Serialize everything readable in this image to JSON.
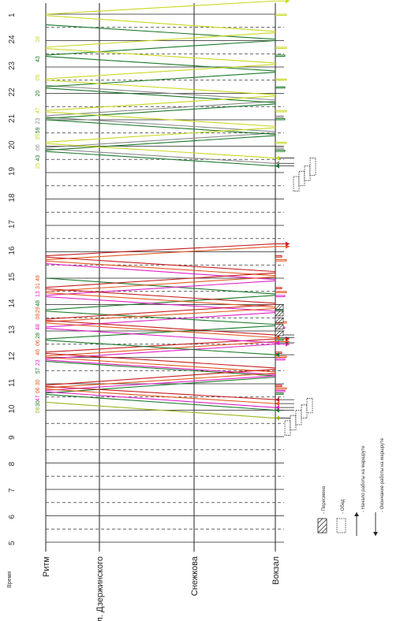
{
  "chart_data": {
    "type": "line",
    "title": "",
    "axis_title": "Время",
    "hours": [
      "5",
      "6",
      "7",
      "8",
      "9",
      "10",
      "11",
      "12",
      "13",
      "14",
      "15",
      "16",
      "17",
      "18",
      "19",
      "20",
      "21",
      "22",
      "23",
      "24",
      "1"
    ],
    "stops": [
      {
        "key": "ritm",
        "label": "Ритм"
      },
      {
        "key": "dzerzh",
        "label": "Ул. Дзержинского"
      },
      {
        "key": "snezh",
        "label": "Снежкова"
      },
      {
        "key": "vokzal",
        "label": "Вокзал"
      }
    ],
    "colors": {
      "green": "#1a7a2a",
      "olive": "#9ab81e",
      "pink": "#e020c8",
      "orange": "#e25820",
      "red": "#c81e1e",
      "gray": "#8a8a8a",
      "dgreen": "#2a6a36",
      "lgreen": "#c8d820"
    },
    "series": [
      {
        "color": "olive",
        "legs": [
          [
            9.7,
            10.3
          ]
        ],
        "end": "arrow"
      },
      {
        "color": "green",
        "legs": [
          [
            10.0,
            10.6
          ],
          [
            10.65,
            11.25
          ],
          [
            11.3,
            11.85
          ]
        ],
        "end": "arrow"
      },
      {
        "color": "pink",
        "legs": [
          [
            10.1,
            10.7
          ],
          [
            10.75,
            11.3
          ],
          [
            11.35,
            11.9
          ],
          [
            11.95,
            12.5
          ]
        ],
        "end": "arrow"
      },
      {
        "color": "orange",
        "legs": [
          [
            10.25,
            10.8
          ],
          [
            10.85,
            11.4
          ],
          [
            11.45,
            12.0
          ],
          [
            12.05,
            12.6
          ]
        ],
        "end": "arrow"
      },
      {
        "color": "red",
        "legs": [
          [
            10.4,
            10.9
          ],
          [
            10.95,
            11.55
          ],
          [
            11.6,
            12.15
          ],
          [
            12.2,
            12.7
          ]
        ],
        "end": "arrow"
      },
      {
        "color": "green",
        "legs": [
          [
            12.1,
            12.65
          ],
          [
            12.7,
            13.2
          ],
          [
            13.25,
            13.75
          ],
          [
            13.8,
            14.35
          ],
          [
            14.4,
            15.0
          ]
        ],
        "end": "arrow"
      },
      {
        "color": "pink",
        "legs": [
          [
            12.55,
            13.1
          ],
          [
            13.15,
            13.7
          ],
          [
            13.75,
            14.3
          ],
          [
            14.35,
            14.9
          ],
          [
            14.95,
            15.55
          ]
        ],
        "end": "arrow"
      },
      {
        "color": "orange",
        "legs": [
          [
            12.75,
            13.3
          ],
          [
            13.35,
            13.85
          ],
          [
            13.9,
            14.45
          ],
          [
            14.5,
            15.05
          ],
          [
            15.1,
            15.65
          ],
          [
            15.7,
            16.2
          ]
        ],
        "end": "arrow"
      },
      {
        "color": "red",
        "legs": [
          [
            12.85,
            13.4
          ],
          [
            13.45,
            14.0
          ],
          [
            14.05,
            14.6
          ],
          [
            14.65,
            15.2
          ],
          [
            15.25,
            15.8
          ],
          [
            15.85,
            16.3
          ]
        ],
        "end": "arrow"
      },
      {
        "color": "gray",
        "legs": [
          [
            19.35,
            19.9
          ],
          [
            19.95,
            20.5
          ],
          [
            20.55,
            21.1
          ],
          [
            21.15,
            21.7
          ],
          [
            21.75,
            22.3
          ]
        ],
        "end": "arrow"
      },
      {
        "color": "green",
        "legs": [
          [
            19.25,
            19.8
          ],
          [
            19.85,
            20.4
          ],
          [
            20.45,
            21.0
          ],
          [
            21.05,
            21.6
          ],
          [
            21.65,
            22.2
          ],
          [
            22.25,
            22.8
          ],
          [
            22.85,
            23.4
          ],
          [
            23.45,
            24.0
          ],
          [
            24.05,
            24.6
          ]
        ],
        "end": "arrow"
      },
      {
        "color": "lgreen",
        "legs": [
          [
            19.55,
            20.1
          ],
          [
            20.15,
            20.7
          ],
          [
            20.75,
            21.3
          ],
          [
            21.35,
            21.9
          ],
          [
            21.95,
            22.5
          ],
          [
            22.55,
            23.1
          ],
          [
            23.15,
            23.7
          ],
          [
            23.75,
            24.3
          ],
          [
            24.35,
            24.95
          ],
          [
            25.0,
            25.5
          ]
        ],
        "end": "arrow"
      }
    ],
    "minute_labels": [
      {
        "hour": 10.0,
        "text": "08",
        "color": "olive"
      },
      {
        "hour": 10.25,
        "text": "30",
        "color": "green"
      },
      {
        "hour": 10.45,
        "text": "47",
        "color": "pink"
      },
      {
        "hour": 10.75,
        "text": "06",
        "color": "orange"
      },
      {
        "hour": 11.05,
        "text": "30",
        "color": "orange"
      },
      {
        "hour": 11.5,
        "text": "57",
        "color": "green"
      },
      {
        "hour": 11.8,
        "text": "23",
        "color": "pink"
      },
      {
        "hour": 12.2,
        "text": "46",
        "color": "orange"
      },
      {
        "hour": 12.55,
        "text": "06",
        "color": "orange"
      },
      {
        "hour": 12.82,
        "text": "28",
        "color": "green"
      },
      {
        "hour": 13.15,
        "text": "48",
        "color": "pink"
      },
      {
        "hour": 13.55,
        "text": "08",
        "color": "orange"
      },
      {
        "hour": 13.8,
        "text": "29",
        "color": "orange"
      },
      {
        "hour": 14.05,
        "text": "48",
        "color": "green"
      },
      {
        "hour": 14.4,
        "text": "13",
        "color": "pink"
      },
      {
        "hour": 14.7,
        "text": "31",
        "color": "orange"
      },
      {
        "hour": 15.0,
        "text": "48",
        "color": "orange"
      },
      {
        "hour": 19.25,
        "text": "25",
        "color": "lgreen"
      },
      {
        "hour": 19.55,
        "text": "43",
        "color": "green"
      },
      {
        "hour": 19.95,
        "text": "06",
        "color": "gray"
      },
      {
        "hour": 20.35,
        "text": "39",
        "color": "lgreen"
      },
      {
        "hour": 20.6,
        "text": "59",
        "color": "green"
      },
      {
        "hour": 20.95,
        "text": "23",
        "color": "gray"
      },
      {
        "hour": 21.35,
        "text": "47",
        "color": "lgreen"
      },
      {
        "hour": 22.0,
        "text": "20",
        "color": "green"
      },
      {
        "hour": 22.6,
        "text": "05",
        "color": "lgreen"
      },
      {
        "hour": 23.3,
        "text": "43",
        "color": "green"
      },
      {
        "hour": 24.05,
        "text": "28",
        "color": "lgreen"
      }
    ],
    "legend": {
      "peresmena": "- Пересмена",
      "obed": "- Обед",
      "start": "- Начало работы на маршруте",
      "end": "- Окончание работы на маршруте"
    }
  }
}
